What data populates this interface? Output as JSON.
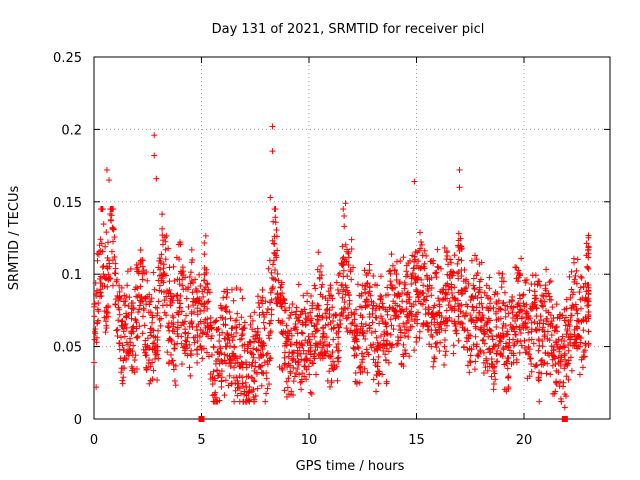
{
  "chart_data": {
    "type": "scatter",
    "title": "Day 131 of 2021, SRMTID for receiver picl",
    "xlabel": "GPS time / hours",
    "ylabel": "SRMTID / TECUs",
    "xlim": [
      0,
      24
    ],
    "ylim": [
      0,
      0.25
    ],
    "xticks": [
      0,
      5,
      10,
      15,
      20
    ],
    "xtick_labels": [
      "0",
      "5",
      "10",
      "15",
      "20"
    ],
    "yticks": [
      0,
      0.05,
      0.1,
      0.15,
      0.2,
      0.25
    ],
    "ytick_labels": [
      "0",
      "0.05",
      "0.1",
      "0.15",
      "0.2",
      "0.25"
    ],
    "grid": true,
    "marker": "plus",
    "color": "#ff0000",
    "zero_markers_x": [
      5.0,
      21.9
    ],
    "series": [
      {
        "x": [
          0.0,
          0.2,
          0.4,
          0.6,
          0.8,
          1.0,
          1.2,
          1.4,
          1.6,
          1.8,
          2.0,
          2.2,
          2.4,
          2.6,
          2.8,
          3.0,
          3.2,
          3.4,
          3.6,
          3.8,
          4.0,
          4.2,
          4.4,
          4.6,
          4.8,
          5.0,
          5.2,
          5.4,
          5.6,
          5.8,
          6.0,
          6.2,
          6.4,
          6.6,
          6.8,
          7.0,
          7.2,
          7.4,
          7.6,
          7.8,
          8.0,
          8.2,
          8.4,
          8.6,
          8.8,
          9.0,
          9.2,
          9.4,
          9.6,
          9.8,
          10.0,
          10.2,
          10.4,
          10.6,
          10.8,
          11.0,
          11.2,
          11.4,
          11.6,
          11.8,
          12.0,
          12.2,
          12.4,
          12.6,
          12.8,
          13.0,
          13.2,
          13.4,
          13.6,
          13.8,
          14.0,
          14.2,
          14.4,
          14.6,
          14.8,
          15.0,
          15.2,
          15.4,
          15.6,
          15.8,
          16.0,
          16.2,
          16.4,
          16.6,
          16.8,
          17.0,
          17.2,
          17.4,
          17.6,
          17.8,
          18.0,
          18.2,
          18.4,
          18.6,
          18.8,
          19.0,
          19.2,
          19.4,
          19.6,
          19.8,
          20.0,
          20.2,
          20.4,
          20.6,
          20.8,
          21.0,
          21.2,
          21.4,
          21.6,
          21.8,
          22.0,
          22.2,
          22.4,
          22.6,
          22.8,
          23.0
        ],
        "y": [
          0.06,
          0.09,
          0.12,
          0.08,
          0.14,
          0.09,
          0.06,
          0.05,
          0.07,
          0.06,
          0.07,
          0.1,
          0.06,
          0.05,
          0.06,
          0.07,
          0.11,
          0.08,
          0.07,
          0.06,
          0.09,
          0.07,
          0.06,
          0.08,
          0.07,
          0.06,
          0.09,
          0.05,
          0.04,
          0.04,
          0.05,
          0.06,
          0.05,
          0.05,
          0.05,
          0.04,
          0.03,
          0.04,
          0.05,
          0.06,
          0.05,
          0.07,
          0.13,
          0.08,
          0.06,
          0.04,
          0.05,
          0.05,
          0.06,
          0.05,
          0.05,
          0.06,
          0.07,
          0.08,
          0.05,
          0.06,
          0.05,
          0.07,
          0.11,
          0.09,
          0.08,
          0.06,
          0.05,
          0.06,
          0.07,
          0.06,
          0.05,
          0.07,
          0.06,
          0.07,
          0.08,
          0.08,
          0.07,
          0.09,
          0.08,
          0.09,
          0.1,
          0.09,
          0.08,
          0.07,
          0.08,
          0.07,
          0.09,
          0.08,
          0.07,
          0.1,
          0.08,
          0.06,
          0.07,
          0.08,
          0.07,
          0.06,
          0.07,
          0.05,
          0.06,
          0.07,
          0.05,
          0.06,
          0.07,
          0.08,
          0.08,
          0.06,
          0.07,
          0.06,
          0.05,
          0.07,
          0.06,
          0.05,
          0.05,
          0.04,
          0.05,
          0.07,
          0.08,
          0.06,
          0.07,
          0.09
        ]
      }
    ],
    "highlights": [
      {
        "x": 0.6,
        "y": 0.172
      },
      {
        "x": 0.7,
        "y": 0.165
      },
      {
        "x": 2.8,
        "y": 0.196
      },
      {
        "x": 2.8,
        "y": 0.182
      },
      {
        "x": 2.9,
        "y": 0.166
      },
      {
        "x": 8.3,
        "y": 0.202
      },
      {
        "x": 8.3,
        "y": 0.185
      },
      {
        "x": 8.2,
        "y": 0.153
      },
      {
        "x": 11.7,
        "y": 0.149
      },
      {
        "x": 14.9,
        "y": 0.164
      },
      {
        "x": 17.0,
        "y": 0.172
      },
      {
        "x": 17.0,
        "y": 0.16
      },
      {
        "x": 21.9,
        "y": 0.008
      },
      {
        "x": 0.1,
        "y": 0.022
      }
    ]
  }
}
